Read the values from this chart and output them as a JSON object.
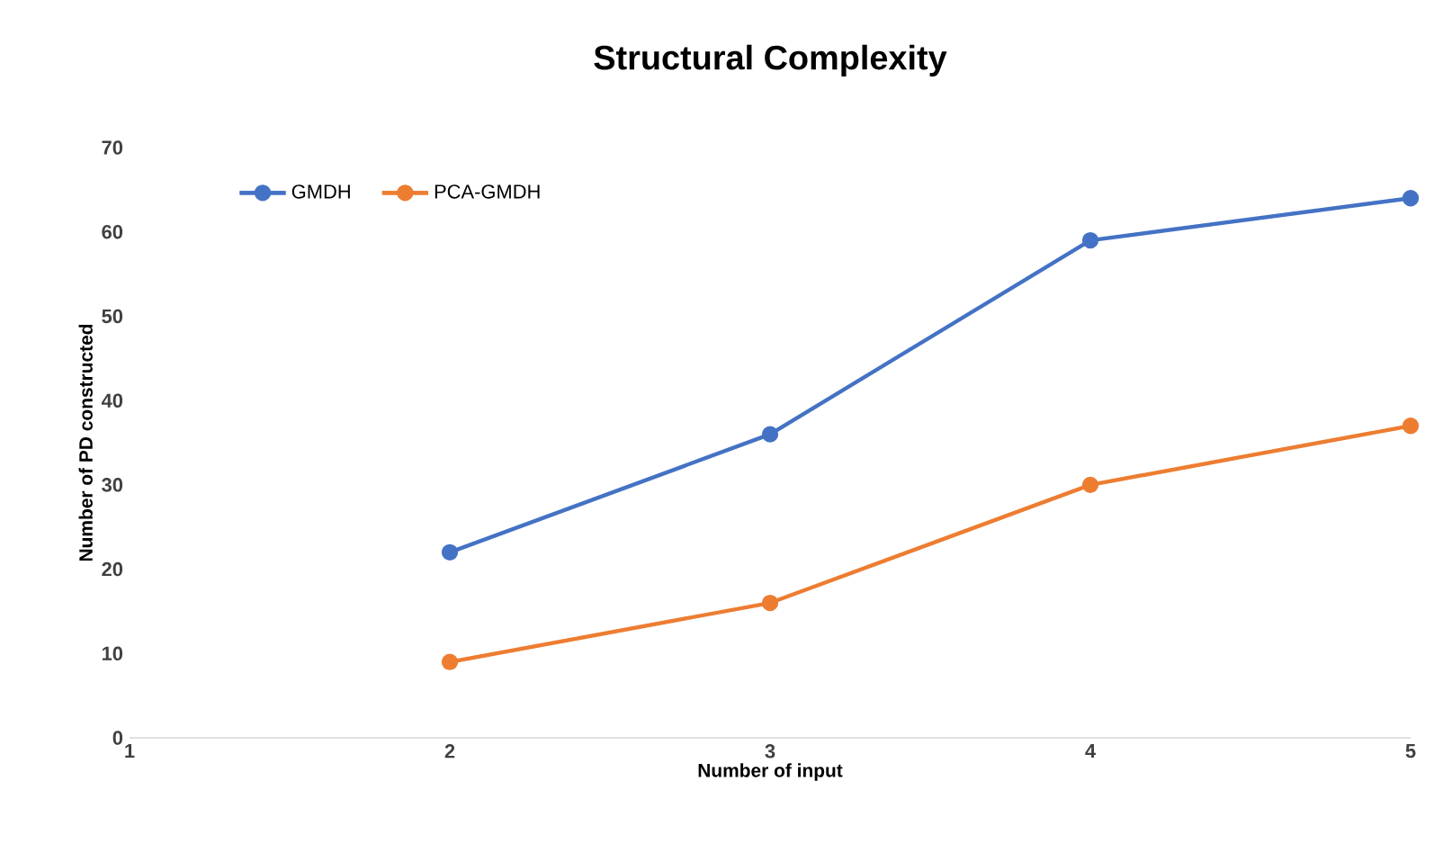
{
  "chart_data": {
    "type": "line",
    "title": "Structural Complexity",
    "xlabel": "Number of input",
    "ylabel": "Number of PD constructed",
    "x": [
      2,
      3,
      4,
      5
    ],
    "series": [
      {
        "name": "GMDH",
        "color": "#4472c4",
        "values": [
          22,
          36,
          59,
          64
        ]
      },
      {
        "name": "PCA-GMDH",
        "color": "#ed7d31",
        "values": [
          9,
          16,
          30,
          37
        ]
      }
    ],
    "xlim": [
      1,
      5
    ],
    "xticks": [
      1,
      2,
      3,
      4,
      5
    ],
    "ylim": [
      0,
      70
    ],
    "yticks": [
      0,
      10,
      20,
      30,
      40,
      50,
      60,
      70
    ],
    "grid": false,
    "legend": "top left",
    "marker": "circle",
    "line_style": "solid"
  }
}
